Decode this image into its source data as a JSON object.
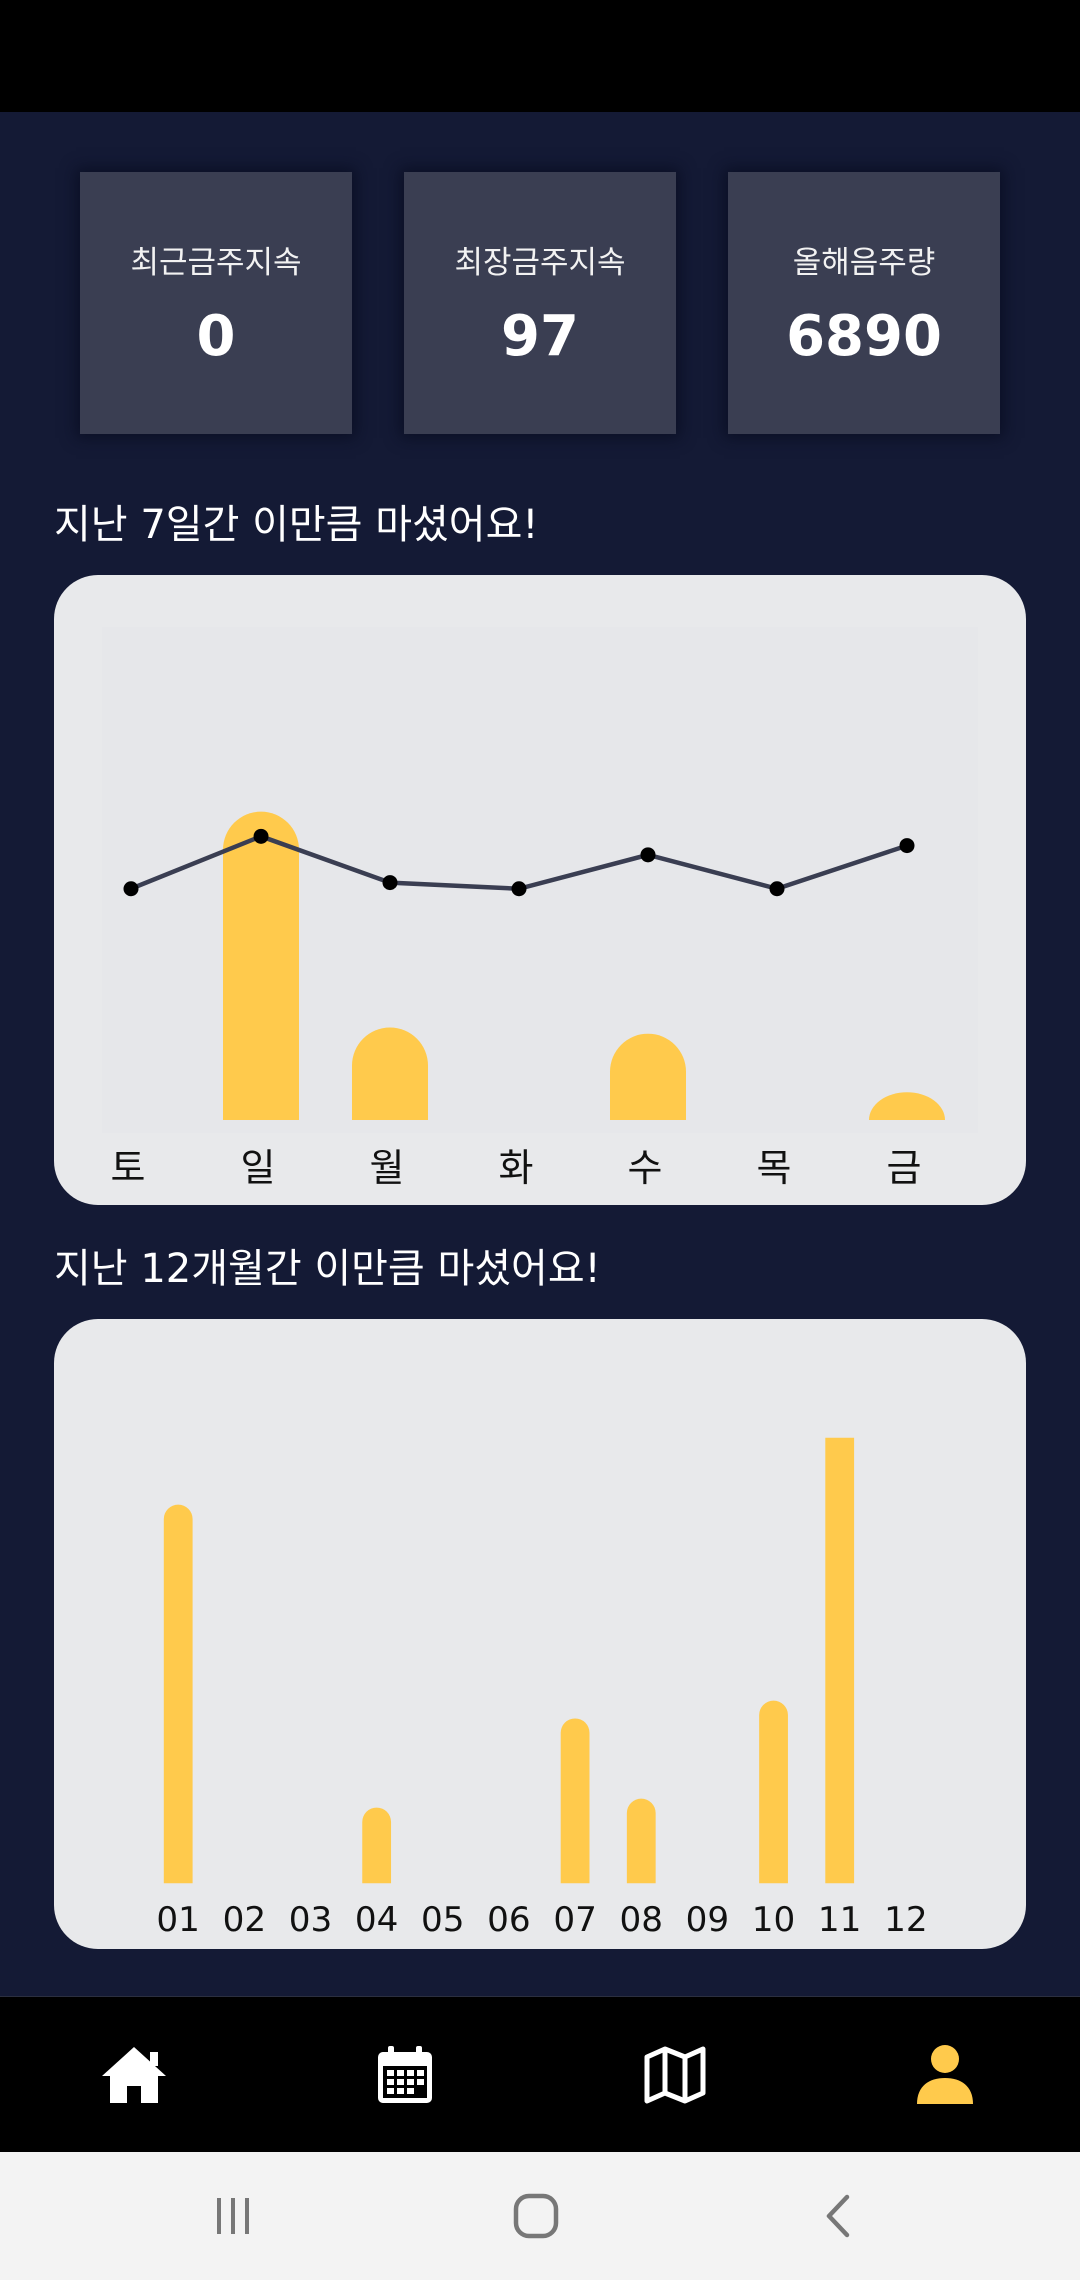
{
  "stats": [
    {
      "label": "최근금주지속",
      "value": "0"
    },
    {
      "label": "최장금주지속",
      "value": "97"
    },
    {
      "label": "올해음주량",
      "value": "6890"
    }
  ],
  "weekly": {
    "title": "지난 7일간 이만큼 마셨어요!",
    "chart_data": {
      "type": "bar",
      "categories": [
        "토",
        "일",
        "월",
        "화",
        "수",
        "목",
        "금"
      ],
      "values": [
        0,
        100,
        30,
        0,
        28,
        0,
        9
      ],
      "line_values": [
        75,
        92,
        77,
        75,
        86,
        75,
        89
      ],
      "ylim": [
        0,
        120
      ],
      "bar_color": "#ffca4c",
      "line_color": "#3a3e52"
    }
  },
  "monthly": {
    "title": "지난 12개월간 이만큼 마셨어요!",
    "chart_data": {
      "type": "bar",
      "categories": [
        "01",
        "02",
        "03",
        "04",
        "05",
        "06",
        "07",
        "08",
        "09",
        "10",
        "11",
        "12"
      ],
      "values": [
        85,
        0,
        0,
        17,
        0,
        0,
        37,
        19,
        0,
        41,
        100,
        0
      ],
      "ylim": [
        0,
        100
      ],
      "bar_color": "#ffca4c"
    }
  },
  "nav": {
    "items": [
      {
        "icon": "home-icon"
      },
      {
        "icon": "calendar-icon"
      },
      {
        "icon": "map-icon"
      },
      {
        "icon": "person-icon"
      }
    ],
    "active_color": "#ffca4c",
    "inactive_color": "#ffffff"
  },
  "system_nav": [
    "recent-apps-icon",
    "home-circle-icon",
    "back-icon"
  ]
}
